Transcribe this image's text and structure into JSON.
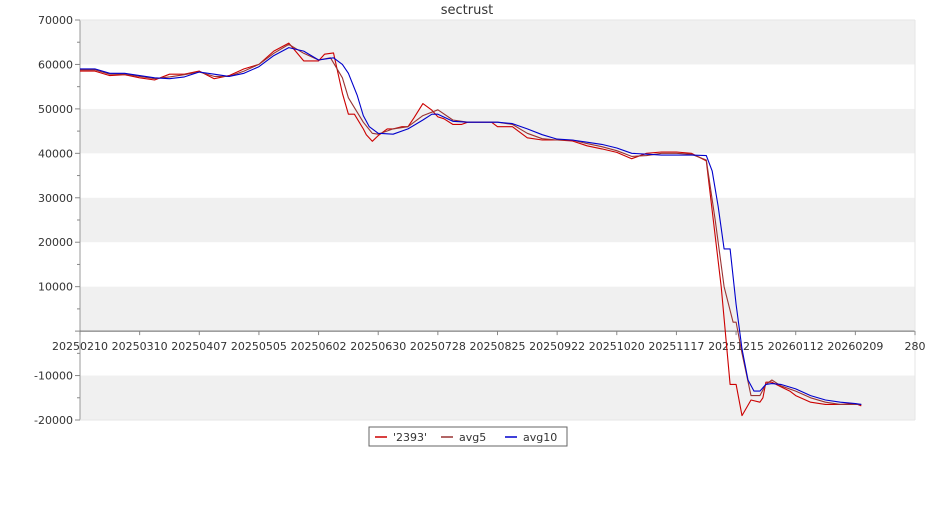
{
  "chart_data": {
    "type": "line",
    "title": "sectrust",
    "xlabel": "",
    "ylabel": "",
    "ylim": [
      -20000,
      70000
    ],
    "yticks": [
      -20000,
      -10000,
      0,
      10000,
      20000,
      30000,
      40000,
      50000,
      60000,
      70000
    ],
    "yticklabels": [
      "-20000",
      "-10000",
      "",
      "10000",
      "20000",
      "30000",
      "40000",
      "50000",
      "60000",
      "70000"
    ],
    "x_domain": [
      0,
      280
    ],
    "xticks": [
      0,
      20,
      40,
      60,
      80,
      100,
      120,
      140,
      160,
      180,
      200,
      220,
      240,
      260,
      280
    ],
    "xticklabels": [
      "20250210",
      "20250310",
      "20250407",
      "20250505",
      "20250602",
      "20250630",
      "20250728",
      "20250825",
      "20250922",
      "20251020",
      "20251117",
      "20251215",
      "20260112",
      "20260209",
      "280"
    ],
    "grid": "alternating horizontal bands",
    "legend": "bottom-center",
    "series": [
      {
        "name": "'2393'",
        "color": "#cc0000",
        "x": [
          0,
          5,
          10,
          15,
          20,
          25,
          30,
          35,
          40,
          45,
          50,
          55,
          60,
          65,
          70,
          75,
          78,
          80,
          82,
          85,
          88,
          90,
          92,
          95,
          96,
          98,
          100,
          103,
          105,
          108,
          110,
          112,
          115,
          118,
          120,
          122,
          125,
          128,
          130,
          133,
          135,
          138,
          140,
          145,
          150,
          155,
          160,
          165,
          170,
          175,
          180,
          185,
          190,
          195,
          200,
          205,
          210,
          215,
          218,
          220,
          222,
          225,
          228,
          229,
          230,
          232,
          235,
          238,
          240,
          245,
          250,
          255,
          260,
          262
        ],
        "y": [
          58500,
          58500,
          57500,
          57700,
          57000,
          56500,
          57800,
          57800,
          58500,
          56800,
          57500,
          59000,
          60000,
          63000,
          64800,
          60800,
          60800,
          60800,
          62300,
          62600,
          53500,
          48800,
          48800,
          45500,
          44200,
          42700,
          44000,
          45500,
          45500,
          46000,
          46000,
          48000,
          51200,
          49700,
          48200,
          47800,
          46500,
          46500,
          47000,
          47000,
          47000,
          47000,
          46000,
          46000,
          43500,
          43000,
          43000,
          42800,
          41700,
          41000,
          40200,
          38800,
          40000,
          40300,
          40300,
          40000,
          38300,
          10000,
          -12000,
          -12000,
          -19000,
          -15500,
          -16000,
          -15000,
          -11500,
          -11500,
          -12500,
          -13500,
          -14500,
          -16000,
          -16500,
          -16500,
          -16300,
          -16800
        ]
      },
      {
        "name": "avg5",
        "color": "#993333",
        "x": [
          0,
          5,
          10,
          15,
          20,
          25,
          30,
          35,
          40,
          45,
          50,
          55,
          60,
          65,
          70,
          75,
          80,
          84,
          88,
          90,
          95,
          98,
          100,
          105,
          110,
          115,
          120,
          125,
          130,
          135,
          140,
          145,
          150,
          155,
          160,
          165,
          170,
          175,
          180,
          185,
          190,
          195,
          200,
          205,
          210,
          213,
          216,
          219,
          220,
          222,
          225,
          228,
          230,
          232,
          235,
          240,
          245,
          250,
          255,
          260,
          262
        ],
        "y": [
          58800,
          58800,
          57800,
          57800,
          57300,
          56800,
          57200,
          57700,
          58300,
          57300,
          57300,
          58500,
          60000,
          62500,
          64500,
          62500,
          61000,
          61500,
          57000,
          52500,
          47000,
          44500,
          44300,
          45500,
          46000,
          48500,
          49800,
          47500,
          47000,
          47000,
          47000,
          46500,
          44500,
          43300,
          43000,
          43000,
          42200,
          41500,
          40600,
          39300,
          39500,
          40000,
          40000,
          39800,
          38500,
          25000,
          10000,
          2000,
          2000,
          -5000,
          -14500,
          -14500,
          -12000,
          -11000,
          -12300,
          -13500,
          -15000,
          -16000,
          -16500,
          -16500,
          -16500
        ]
      },
      {
        "name": "avg10",
        "color": "#0000cc",
        "x": [
          0,
          5,
          10,
          15,
          20,
          25,
          30,
          35,
          40,
          45,
          50,
          55,
          60,
          65,
          70,
          75,
          80,
          85,
          88,
          90,
          93,
          95,
          97,
          100,
          105,
          110,
          115,
          118,
          120,
          125,
          130,
          135,
          140,
          145,
          150,
          155,
          160,
          165,
          170,
          175,
          180,
          185,
          190,
          195,
          200,
          205,
          210,
          212,
          214,
          216,
          218,
          220,
          222,
          224,
          226,
          228,
          230,
          232,
          235,
          240,
          245,
          250,
          255,
          260,
          262
        ],
        "y": [
          59000,
          59000,
          58000,
          58000,
          57500,
          57000,
          56800,
          57200,
          58300,
          57800,
          57300,
          58000,
          59500,
          62000,
          63800,
          63000,
          61000,
          61500,
          60000,
          58000,
          53000,
          48500,
          46000,
          44500,
          44300,
          45500,
          47500,
          48800,
          48800,
          47200,
          47000,
          47000,
          47000,
          46700,
          45500,
          44200,
          43200,
          43000,
          42500,
          42000,
          41200,
          40000,
          39800,
          39600,
          39600,
          39600,
          39500,
          36000,
          28000,
          18500,
          18500,
          6000,
          -4000,
          -11000,
          -13500,
          -13500,
          -12000,
          -11800,
          -12000,
          -13000,
          -14500,
          -15500,
          -16000,
          -16300,
          -16500
        ]
      }
    ]
  }
}
